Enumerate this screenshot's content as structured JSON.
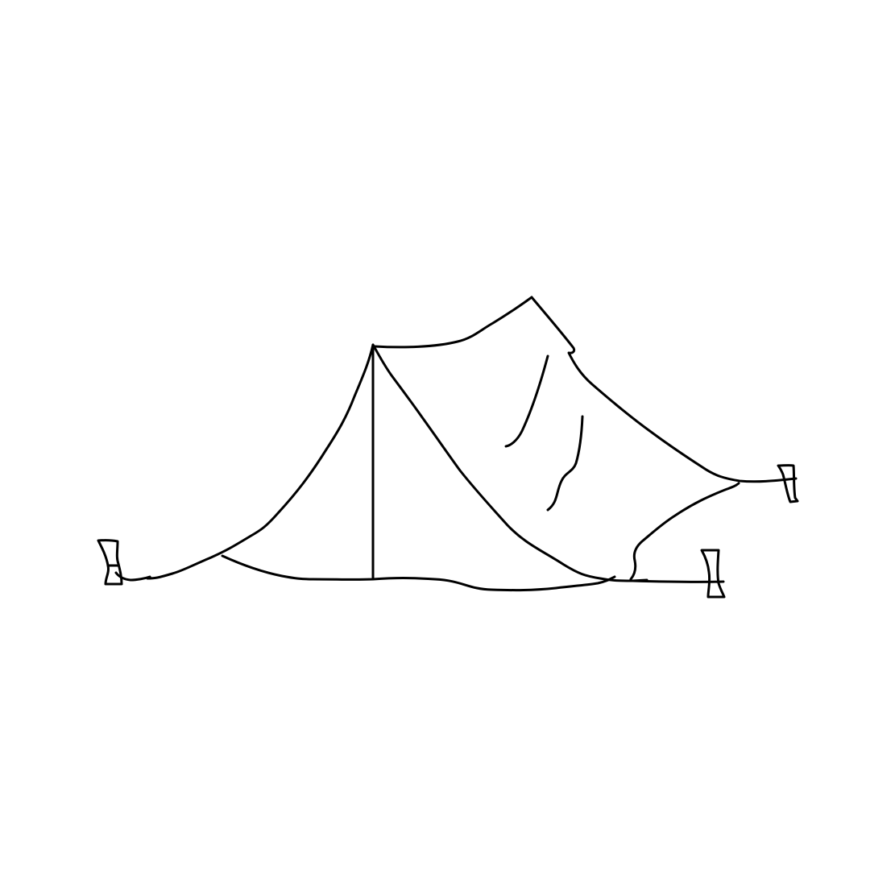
{
  "drawing": {
    "subject": "tent-sketch",
    "stroke_color": "#000000",
    "background_color": "#ffffff"
  }
}
